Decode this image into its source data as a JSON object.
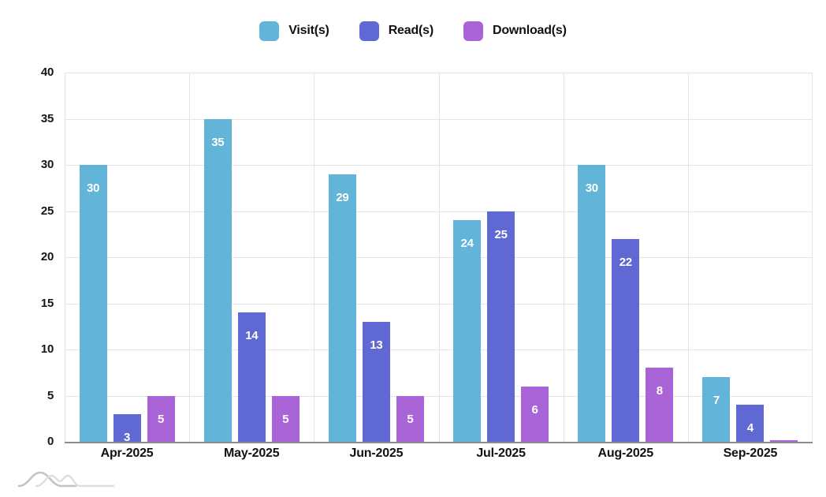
{
  "page": {
    "background": "#ffffff"
  },
  "chart_data": {
    "type": "bar",
    "title": "",
    "xlabel": "",
    "ylabel": "",
    "categories": [
      "Apr-2025",
      "May-2025",
      "Jun-2025",
      "Jul-2025",
      "Aug-2025",
      "Sep-2025"
    ],
    "series": [
      {
        "name": "Visit(s)",
        "color": "#62b5d9",
        "values": [
          30,
          35,
          29,
          24,
          30,
          7
        ]
      },
      {
        "name": "Read(s)",
        "color": "#6068d4",
        "values": [
          3,
          14,
          13,
          25,
          22,
          4
        ]
      },
      {
        "name": "Download(s)",
        "color": "#a965d8",
        "values": [
          5,
          5,
          5,
          6,
          8,
          0
        ]
      }
    ],
    "data_labels": "white numbers inside bar near top",
    "ylim": [
      0,
      40
    ],
    "yticks": [
      0,
      5,
      10,
      15,
      20,
      25,
      30,
      35,
      40
    ],
    "grid": true,
    "legend_position": "top-center",
    "colors": {
      "grid": "#e4e4e4",
      "axis_line": "#8c8c8c",
      "tick_text": "#161616",
      "bar_label_text": "#ffffff"
    }
  },
  "watermark": {
    "name": "wave-logo"
  }
}
